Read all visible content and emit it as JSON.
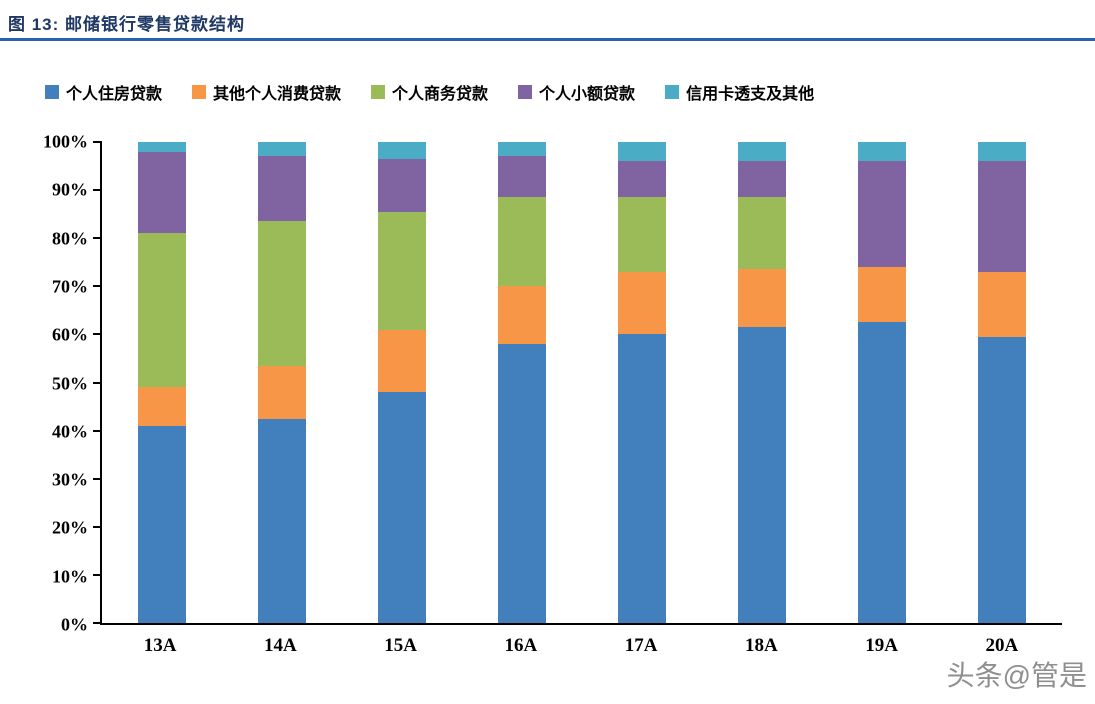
{
  "header": {
    "title": "图 13:  邮储银行零售贷款结构"
  },
  "watermark": "头条@管是",
  "chart_data": {
    "type": "bar",
    "stacked": true,
    "percent_stacked": true,
    "title": "邮储银行零售贷款结构",
    "xlabel": "",
    "ylabel": "",
    "grid": false,
    "legend_position": "top",
    "ylim": [
      0,
      100
    ],
    "ytick_step": 10,
    "ytick_suffix": "%",
    "categories": [
      "13A",
      "14A",
      "15A",
      "16A",
      "17A",
      "18A",
      "19A",
      "20A"
    ],
    "series": [
      {
        "name": "个人住房贷款",
        "color": "#4180BD",
        "values": [
          41.0,
          42.5,
          48.0,
          58.0,
          60.0,
          61.5,
          62.5,
          59.5
        ]
      },
      {
        "name": "其他个人消费贷款",
        "color": "#F79646",
        "values": [
          8.0,
          11.0,
          13.0,
          12.0,
          13.0,
          12.0,
          11.5,
          13.5
        ]
      },
      {
        "name": "个人商务贷款",
        "color": "#9BBB59",
        "values": [
          32.0,
          30.0,
          24.5,
          18.5,
          15.5,
          15.0,
          0.0,
          0.0
        ]
      },
      {
        "name": "个人小额贷款",
        "color": "#8064A2",
        "values": [
          17.0,
          13.5,
          11.0,
          8.5,
          7.5,
          7.5,
          22.0,
          23.0
        ]
      },
      {
        "name": "信用卡透支及其他",
        "color": "#4BACC6",
        "values": [
          2.0,
          3.0,
          3.5,
          3.0,
          4.0,
          4.0,
          4.0,
          4.0
        ]
      }
    ]
  }
}
